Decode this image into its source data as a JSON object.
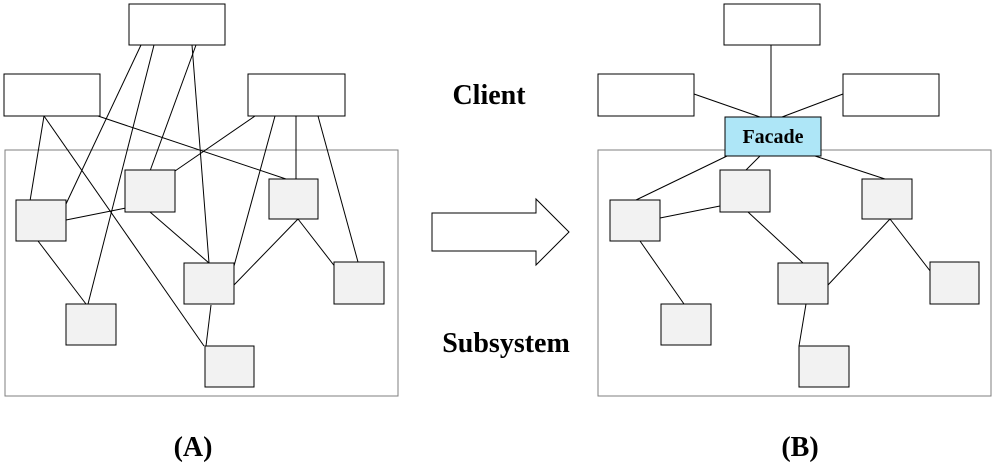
{
  "labels": {
    "client": "Client",
    "subsystem": "Subsystem",
    "facade": "Facade",
    "panel_a": "(A)",
    "panel_b": "(B)"
  },
  "colors": {
    "client_box_fill": "#ffffff",
    "subsystem_box_fill": "#f2f2f2",
    "facade_fill": "#aee6f7",
    "frame_stroke": "#7f7f7f",
    "line": "#000000"
  }
}
